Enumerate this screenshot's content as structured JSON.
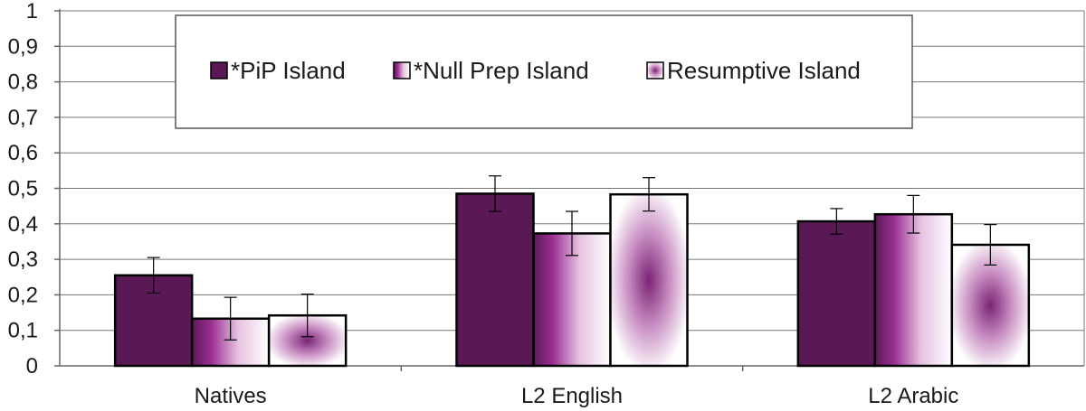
{
  "chart_data": {
    "type": "bar",
    "categories": [
      "Natives",
      "L2 English",
      "L2 Arabic"
    ],
    "series": [
      {
        "name": "*PiP Island",
        "values": [
          0.255,
          0.485,
          0.407
        ],
        "errors": [
          0.05,
          0.05,
          0.036
        ],
        "fill": "solid"
      },
      {
        "name": "*Null Prep Island",
        "values": [
          0.133,
          0.373,
          0.427
        ],
        "errors": [
          0.06,
          0.062,
          0.053
        ],
        "fill": "horizontal-gradient"
      },
      {
        "name": "Resumptive Island",
        "values": [
          0.142,
          0.483,
          0.341
        ],
        "errors": [
          0.06,
          0.047,
          0.057
        ],
        "fill": "radial-gradient"
      }
    ],
    "yticks": [
      "0",
      "0,1",
      "0,2",
      "0,3",
      "0,4",
      "0,5",
      "0,6",
      "0,7",
      "0,8",
      "0,9",
      "1"
    ],
    "ylim": [
      0,
      1
    ],
    "grid": true,
    "legend_position": "top-center",
    "colors": {
      "series": "#5a1955",
      "edge": "#000000",
      "grid": "#777777",
      "axis": "#666666"
    }
  }
}
